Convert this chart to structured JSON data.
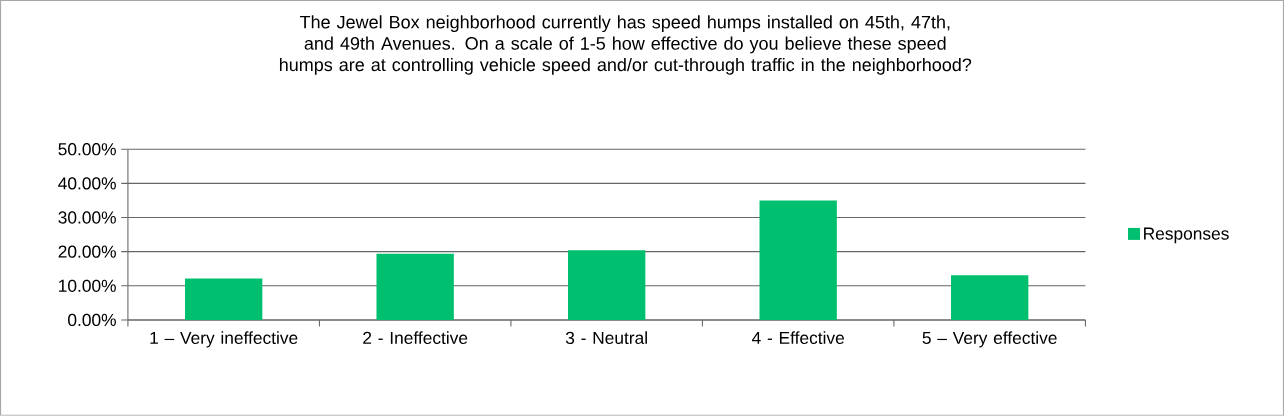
{
  "chart_data": {
    "type": "bar",
    "title": "The Jewel Box neighborhood currently has speed humps installed on 45th, 47th, and 49th Avenues. On a scale of 1-5 how effective do you believe these speed humps are at controlling vehicle speed and/or cut-through traffic in the neighborhood?",
    "categories": [
      "1 – Very ineffective",
      "2 - Ineffective",
      "3 - Neutral",
      "4 - Effective",
      "5 – Very effective"
    ],
    "series": [
      {
        "name": "Responses",
        "color": "#00bf6f",
        "values": [
          12.1,
          19.4,
          20.4,
          35.0,
          13.1
        ]
      }
    ],
    "ylim": [
      0,
      50
    ],
    "yticks": [
      {
        "value": 0,
        "label": "0.00%"
      },
      {
        "value": 10,
        "label": "10.00%"
      },
      {
        "value": 20,
        "label": "20.00%"
      },
      {
        "value": 30,
        "label": "30.00%"
      },
      {
        "value": 40,
        "label": "40.00%"
      },
      {
        "value": 50,
        "label": "50.00%"
      }
    ],
    "grid": "y",
    "legend": "right"
  }
}
